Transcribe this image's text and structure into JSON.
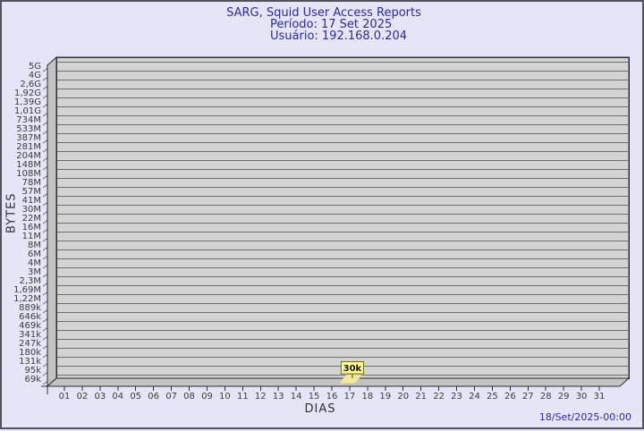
{
  "chart_data": {
    "type": "bar",
    "title": "SARG, Squid User Access Reports",
    "subtitle_period": "Período: 17 Set 2025",
    "subtitle_user": "Usuário: 192.168.0.204",
    "xlabel": "DIAS",
    "ylabel": "BYTES",
    "y_scale": "log",
    "y_tick_labels_top_to_bottom": [
      "5G",
      "4G",
      "2,6G",
      "1,92G",
      "1,39G",
      "1,01G",
      "734M",
      "533M",
      "387M",
      "281M",
      "204M",
      "148M",
      "108M",
      "78M",
      "57M",
      "41M",
      "30M",
      "22M",
      "16M",
      "11M",
      "8M",
      "6M",
      "4M",
      "3M",
      "2,3M",
      "1,69M",
      "1,22M",
      "889k",
      "646k",
      "469k",
      "341k",
      "247k",
      "180k",
      "131k",
      "95k",
      "69k"
    ],
    "categories": [
      "01",
      "02",
      "03",
      "04",
      "05",
      "06",
      "07",
      "08",
      "09",
      "10",
      "11",
      "12",
      "13",
      "14",
      "15",
      "16",
      "17",
      "18",
      "19",
      "20",
      "21",
      "22",
      "23",
      "24",
      "25",
      "26",
      "27",
      "28",
      "29",
      "30",
      "31"
    ],
    "bars": [
      {
        "category": "17",
        "value_label": "30k"
      }
    ],
    "footer_timestamp": "18/Set/2025-00:00",
    "legend": "none",
    "grid": "horizontal",
    "colors": {
      "page_bg": "#e5e5f7",
      "page_border": "#53535c",
      "plot_face": "#d3d3d3",
      "plot_wall": "#c3c3c3",
      "grid_line": "#6e6e6e",
      "frame_line": "#2e2e2e",
      "title_text": "#2b2b99",
      "tick_text": "#3c3c3c",
      "bar_fill": "#f0e7a2",
      "bar_edge": "#c9bd74",
      "tooltip_fill": "#ffff9c",
      "tooltip_border": "#6f6f00",
      "tooltip_text": "#161600"
    }
  }
}
